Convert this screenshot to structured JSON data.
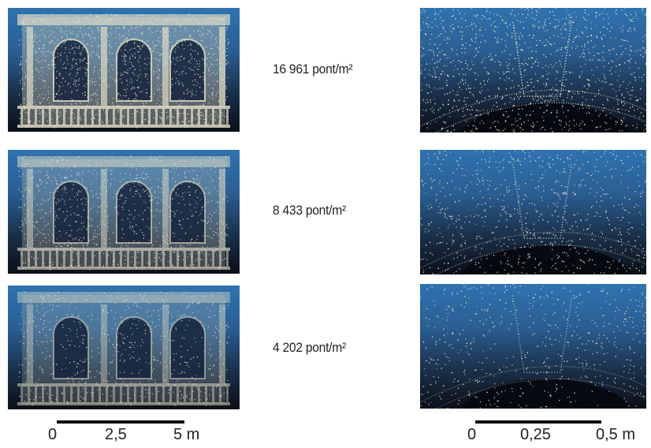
{
  "rows": [
    {
      "density_label": "16 961 pont/m²",
      "facade_density": 1.0
    },
    {
      "density_label": "8 433 pont/m²",
      "facade_density": 0.55
    },
    {
      "density_label": "4 202 pont/m²",
      "facade_density": 0.3
    }
  ],
  "scalebar_left": {
    "ticks": [
      "0",
      "2,5",
      "5 m"
    ]
  },
  "scalebar_right": {
    "ticks": [
      "0",
      "0,25",
      "0,5 m"
    ]
  },
  "colors": {
    "sky_top": "#2f73b0",
    "ground": "#0a0f18",
    "points": "#e8e2c8"
  }
}
